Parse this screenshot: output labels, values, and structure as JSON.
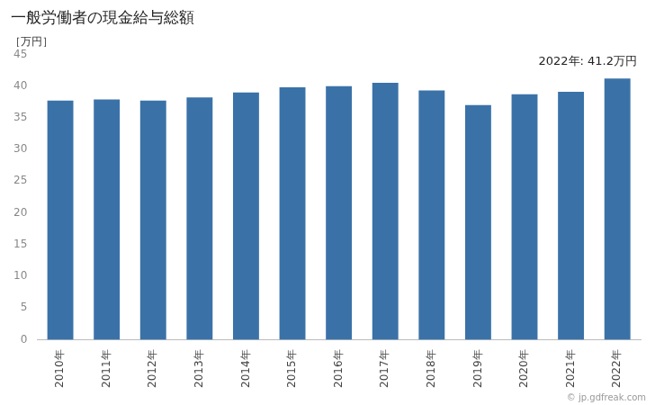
{
  "chart_data": {
    "type": "bar",
    "title": "一般労働者の現金給与総額",
    "ylabel": "［万円］",
    "annotation": "2022年: 41.2万円",
    "watermark": "© jp.gdfreak.com",
    "categories": [
      "2010年",
      "2011年",
      "2012年",
      "2013年",
      "2014年",
      "2015年",
      "2016年",
      "2017年",
      "2018年",
      "2019年",
      "2020年",
      "2021年",
      "2022年"
    ],
    "values": [
      37.7,
      37.9,
      37.7,
      38.2,
      39.0,
      39.8,
      40.0,
      40.5,
      39.3,
      37.0,
      38.7,
      39.1,
      41.2
    ],
    "color": "#3A72A8",
    "ylim": [
      0,
      45
    ],
    "yticks": [
      0,
      5,
      10,
      15,
      20,
      25,
      30,
      35,
      40,
      45
    ],
    "grid": false
  }
}
